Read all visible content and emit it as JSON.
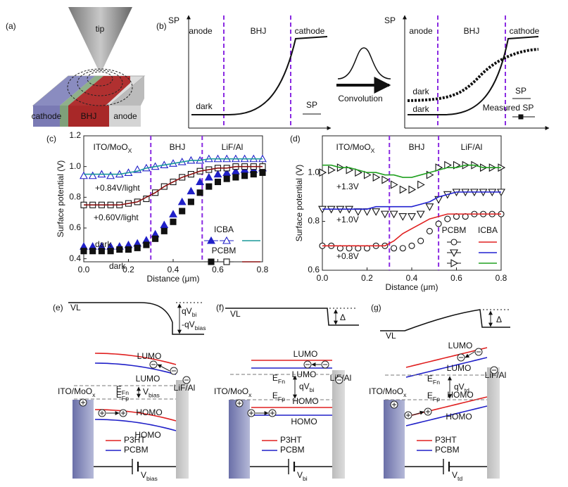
{
  "panel_a": {
    "label": "(a)",
    "tip": "tip",
    "cathode": "cathode",
    "bhj": "BHJ",
    "anode": "anode"
  },
  "panel_b": {
    "label": "(b)",
    "axis": "SP",
    "regions": [
      "anode",
      "BHJ",
      "cathode"
    ],
    "dark": "dark",
    "sp": "SP",
    "convolution": "Convolution",
    "right_axis": "SP",
    "right_regions": [
      "anode",
      "BHJ",
      "cathode"
    ],
    "right_dark": [
      "dark",
      "dark"
    ],
    "right_sp": "SP",
    "measured": "Measured SP"
  },
  "chart_data": [
    {
      "type": "line",
      "label": "(c)",
      "xlabel": "Distance (μm)",
      "ylabel": "Surface potential (V)",
      "xlim": [
        0,
        0.8
      ],
      "ylim": [
        0.38,
        1.2
      ],
      "xticks": [
        {
          "value": 0,
          "label": "0.0"
        },
        0.2,
        0.4,
        0.6,
        0.8
      ],
      "yticks": [
        0.4,
        0.6,
        0.8,
        {
          "value": 1,
          "label": "1.0"
        },
        1.2
      ],
      "boundaries": [
        0.3,
        0.53
      ],
      "regions": [
        {
          "text": "ITO/MoO",
          "sub": "X"
        },
        {
          "text": "BHJ"
        },
        {
          "text": "LiF/Al"
        }
      ],
      "annotations": [
        {
          "text": "+0.84V/light",
          "color": "#1a8a8a"
        },
        {
          "text": "+0.60V/light",
          "color": "#7a1010"
        },
        {
          "text": "dark",
          "color": "#2020b0"
        },
        {
          "text": "dark",
          "color": "#111111"
        }
      ],
      "legend_groups": [
        {
          "name": "ICBA",
          "color": "#2020b0"
        },
        {
          "name": "PCBM",
          "color": "#111111"
        }
      ],
      "x": [
        0,
        0.04,
        0.08,
        0.12,
        0.16,
        0.2,
        0.24,
        0.28,
        0.32,
        0.36,
        0.4,
        0.44,
        0.48,
        0.52,
        0.56,
        0.6,
        0.64,
        0.68,
        0.72,
        0.76,
        0.8
      ],
      "series": [
        {
          "group": 0,
          "color": "#2020c8",
          "marker": "triangle",
          "filled": true,
          "line": false,
          "values": [
            0.48,
            0.48,
            0.48,
            0.48,
            0.48,
            0.49,
            0.5,
            0.52,
            0.56,
            0.62,
            0.69,
            0.77,
            0.84,
            0.9,
            0.93,
            0.95,
            0.96,
            0.97,
            0.98,
            0.98,
            0.99
          ]
        },
        {
          "group": 0,
          "color": "#2020c8",
          "marker": "triangle",
          "filled": false,
          "line": false,
          "values": [
            0.94,
            0.94,
            0.95,
            0.94,
            0.95,
            0.96,
            0.98,
            0.99,
            1.0,
            1.01,
            1.02,
            1.03,
            1.04,
            1.04,
            1.05,
            1.05,
            1.05,
            1.05,
            1.05,
            1.05,
            1.05
          ]
        },
        {
          "group": 0,
          "color": "#1a9a9a",
          "marker": "none",
          "filled": false,
          "line": true,
          "values": [
            0.95,
            0.95,
            0.95,
            0.95,
            0.95,
            0.96,
            0.97,
            0.99,
            1.0,
            1.01,
            1.02,
            1.03,
            1.04,
            1.04,
            1.05,
            1.05,
            1.05,
            1.05,
            1.05,
            1.05,
            1.05
          ]
        },
        {
          "group": 1,
          "color": "#111111",
          "marker": "square",
          "filled": true,
          "line": false,
          "values": [
            0.45,
            0.45,
            0.45,
            0.45,
            0.46,
            0.46,
            0.47,
            0.49,
            0.53,
            0.58,
            0.64,
            0.71,
            0.77,
            0.83,
            0.87,
            0.9,
            0.92,
            0.93,
            0.94,
            0.95,
            0.96
          ]
        },
        {
          "group": 1,
          "color": "#111111",
          "marker": "square",
          "filled": false,
          "line": false,
          "values": [
            0.75,
            0.75,
            0.75,
            0.75,
            0.75,
            0.76,
            0.77,
            0.79,
            0.83,
            0.87,
            0.9,
            0.93,
            0.95,
            0.97,
            0.98,
            0.99,
            0.99,
            1.0,
            1.0,
            1.0,
            1.0
          ]
        },
        {
          "group": 1,
          "color": "#8a1010",
          "marker": "none",
          "filled": false,
          "line": true,
          "values": [
            0.75,
            0.75,
            0.75,
            0.75,
            0.75,
            0.76,
            0.77,
            0.8,
            0.83,
            0.87,
            0.9,
            0.93,
            0.95,
            0.97,
            0.98,
            0.99,
            0.99,
            1.0,
            1.0,
            1.0,
            1.0
          ]
        }
      ]
    },
    {
      "type": "line",
      "label": "(d)",
      "xlabel": "Distance (μm)",
      "ylabel": "Surface potential (V)",
      "xlim": [
        0,
        0.8
      ],
      "ylim": [
        0.6,
        1.15
      ],
      "xticks": [
        {
          "value": 0,
          "label": "0.0"
        },
        0.2,
        0.4,
        0.6,
        0.8
      ],
      "yticks": [
        0.6,
        0.8,
        {
          "value": 1,
          "label": "1.0"
        }
      ],
      "boundaries": [
        0.3,
        0.52
      ],
      "regions": [
        {
          "text": "ITO/MoO",
          "sub": "X"
        },
        {
          "text": "BHJ"
        },
        {
          "text": "LiF/Al"
        }
      ],
      "annotations": [
        {
          "text": "+1.3V",
          "color": "#111111"
        },
        {
          "text": "+1.0V",
          "color": "#111111"
        },
        {
          "text": "+0.8V",
          "color": "#111111"
        }
      ],
      "legend_groups": [
        {
          "name": "PCBM",
          "color": "#111111"
        },
        {
          "name": "ICBA",
          "color": "#111111"
        }
      ],
      "x": [
        0,
        0.04,
        0.08,
        0.12,
        0.16,
        0.2,
        0.24,
        0.28,
        0.32,
        0.36,
        0.4,
        0.44,
        0.48,
        0.52,
        0.56,
        0.6,
        0.64,
        0.68,
        0.72,
        0.76,
        0.8
      ],
      "series": [
        {
          "group": 0,
          "color": "#111111",
          "marker": "circle",
          "filled": false,
          "line": false,
          "values": [
            0.7,
            0.7,
            0.69,
            0.69,
            0.69,
            0.69,
            0.7,
            0.7,
            0.69,
            0.69,
            0.7,
            0.72,
            0.76,
            0.79,
            0.81,
            0.82,
            0.82,
            0.83,
            0.83,
            0.83,
            0.83
          ]
        },
        {
          "group": 0,
          "color": "#111111",
          "marker": "triangle-down",
          "filled": false,
          "line": false,
          "values": [
            0.85,
            0.85,
            0.85,
            0.85,
            0.84,
            0.84,
            0.84,
            0.83,
            0.83,
            0.82,
            0.82,
            0.83,
            0.86,
            0.89,
            0.91,
            0.92,
            0.92,
            0.92,
            0.92,
            0.92,
            0.92
          ]
        },
        {
          "group": 0,
          "color": "#111111",
          "marker": "triangle-right",
          "filled": false,
          "line": false,
          "values": [
            1.0,
            1.01,
            1.02,
            1.01,
            1.0,
            0.99,
            0.98,
            0.97,
            0.95,
            0.93,
            0.93,
            0.95,
            0.99,
            1.02,
            1.03,
            1.03,
            1.03,
            1.03,
            1.02,
            1.02,
            1.02
          ]
        },
        {
          "group": 1,
          "color": "#e02020",
          "marker": "none",
          "filled": false,
          "line": true,
          "values": [
            0.7,
            0.7,
            0.7,
            0.7,
            0.7,
            0.7,
            0.7,
            0.7,
            0.72,
            0.75,
            0.77,
            0.79,
            0.81,
            0.82,
            0.83,
            0.83,
            0.83,
            0.83,
            0.83,
            0.83,
            0.83
          ]
        },
        {
          "group": 1,
          "color": "#2020d0",
          "marker": "none",
          "filled": false,
          "line": true,
          "values": [
            0.85,
            0.85,
            0.85,
            0.85,
            0.85,
            0.85,
            0.86,
            0.86,
            0.86,
            0.86,
            0.86,
            0.87,
            0.88,
            0.9,
            0.91,
            0.92,
            0.92,
            0.92,
            0.92,
            0.92,
            0.92
          ]
        },
        {
          "group": 1,
          "color": "#20a020",
          "marker": "none",
          "filled": false,
          "line": true,
          "values": [
            1.03,
            1.03,
            1.02,
            1.02,
            1.01,
            1.0,
            1.0,
            0.99,
            0.99,
            0.98,
            0.98,
            0.99,
            1.0,
            1.01,
            1.02,
            1.02,
            1.03,
            1.03,
            1.02,
            1.02,
            1.02
          ]
        }
      ]
    }
  ],
  "band_diagrams": [
    {
      "label": "(e)",
      "vl": "VL",
      "potential": [
        {
          "text": "qV",
          "sub": "bi"
        },
        {
          "text": "-qV",
          "sub": "bias"
        }
      ],
      "lumo": [
        "LUMO",
        "LUMO"
      ],
      "homo": [
        "HOMO",
        "HOMO"
      ],
      "left": {
        "text": "ITO/MoO",
        "sub": "x"
      },
      "right": "LiF/Al",
      "efn": {
        "text": "E",
        "sub": "Fn"
      },
      "efp": {
        "text": "E",
        "sub": "Fp"
      },
      "gap": {
        "text": "V",
        "sub": "bias"
      },
      "legend": [
        "P3HT",
        "PCBM"
      ],
      "battery": {
        "text": "V",
        "sub": "bias"
      }
    },
    {
      "label": "(f)",
      "vl": "VL",
      "potential": [
        {
          "text": "Δ"
        }
      ],
      "lumo": [
        "LUMO",
        "LUMO"
      ],
      "homo": [
        "HOMO",
        "HOMO"
      ],
      "left": {
        "text": "ITO/MoO",
        "sub": "x"
      },
      "right": "LiF/Al",
      "efn": {
        "text": "E",
        "sub": "Fn"
      },
      "efp": {
        "text": "E",
        "sub": "Fp"
      },
      "gap": {
        "text": "qV",
        "sub": "bi"
      },
      "legend": [
        "P3HT",
        "PCBM"
      ],
      "battery": {
        "text": "V",
        "sub": "bi"
      }
    },
    {
      "label": "(g)",
      "vl": "VL",
      "potential": [
        {
          "text": "Δ"
        }
      ],
      "lumo": [
        "LUMO",
        "LUMO"
      ],
      "homo": [
        "HOMO",
        "HOMO"
      ],
      "left": {
        "text": "ITO/MoO",
        "sub": "x"
      },
      "right": "LiF/Al",
      "efn": {
        "text": "E",
        "sub": "Fn"
      },
      "efp": {
        "text": "E",
        "sub": "Fp"
      },
      "gap": {
        "text": "qV",
        "sub": "td"
      },
      "legend": [
        "P3HT",
        "PCBM"
      ],
      "battery": {
        "text": "V",
        "sub": "td"
      }
    }
  ]
}
